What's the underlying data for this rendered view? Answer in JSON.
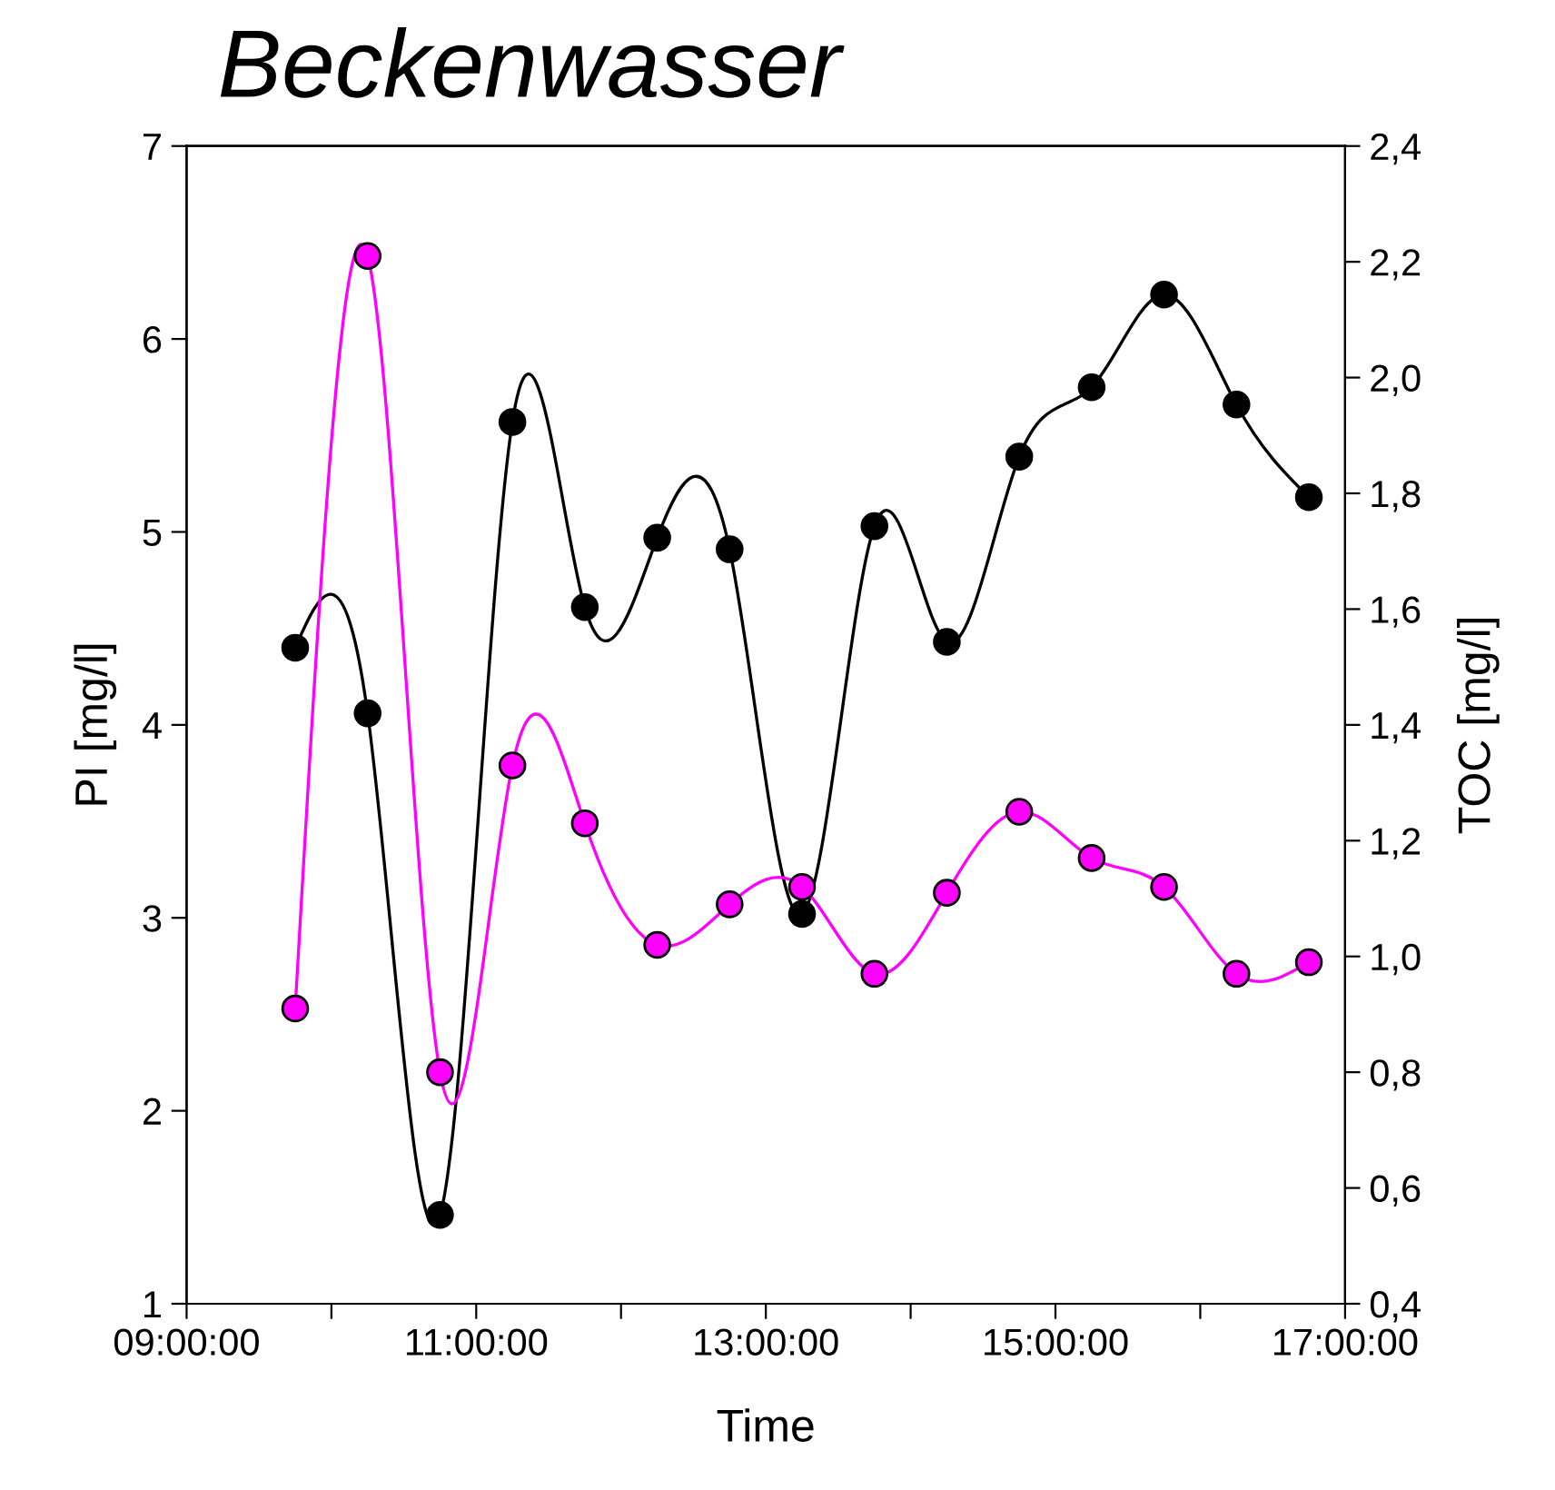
{
  "chart_data": {
    "type": "line",
    "title": "Beckenwasser",
    "xlabel": "Time",
    "ylabel": "PI [mg/l]",
    "y2label": "TOC [mg/l]",
    "x": [
      9.75,
      10.25,
      10.75,
      11.25,
      11.75,
      12.25,
      12.75,
      13.25,
      13.75,
      14.25,
      14.75,
      15.25,
      15.75,
      16.25,
      16.75
    ],
    "series": [
      {
        "color": "#000000",
        "values": [
          4.4,
          4.06,
          1.46,
          5.57,
          4.61,
          4.97,
          4.91,
          3.02,
          5.03,
          4.43,
          5.39,
          5.75,
          6.23,
          5.66,
          5.18
        ]
      },
      {
        "color": "#ff00ff",
        "axis": "y2",
        "values": [
          0.91,
          2.21,
          0.8,
          1.33,
          1.23,
          1.02,
          1.09,
          1.12,
          0.97,
          1.11,
          1.25,
          1.17,
          1.12,
          0.97,
          0.99
        ]
      }
    ],
    "xlim": [
      9,
      17
    ],
    "xticks": [
      {
        "value": 9,
        "label": "09:00:00"
      },
      {
        "value": 10,
        "label": null
      },
      {
        "value": 11,
        "label": "11:00:00"
      },
      {
        "value": 12,
        "label": null
      },
      {
        "value": 13,
        "label": "13:00:00"
      },
      {
        "value": 14,
        "label": null
      },
      {
        "value": 15,
        "label": "15:00:00"
      },
      {
        "value": 16,
        "label": null
      },
      {
        "value": 17,
        "label": "17:00:00"
      }
    ],
    "ylim": [
      1,
      7
    ],
    "yticks": [
      1,
      2,
      3,
      4,
      5,
      6,
      7
    ],
    "y2lim": [
      0.4,
      2.4
    ],
    "y2ticks": [
      {
        "value": 0.4,
        "label": "0,4"
      },
      {
        "value": 0.6,
        "label": "0,6"
      },
      {
        "value": 0.8,
        "label": "0,8"
      },
      {
        "value": 1.0,
        "label": "1,0"
      },
      {
        "value": 1.2,
        "label": "1,2"
      },
      {
        "value": 1.4,
        "label": "1,4"
      },
      {
        "value": 1.6,
        "label": "1,6"
      },
      {
        "value": 1.8,
        "label": "1,8"
      },
      {
        "value": 2.0,
        "label": "2,0"
      },
      {
        "value": 2.2,
        "label": "2,2"
      },
      {
        "value": 2.4,
        "label": "2,4"
      }
    ],
    "marker": "circle",
    "line_style": "solid",
    "grid": false,
    "legend": false
  }
}
